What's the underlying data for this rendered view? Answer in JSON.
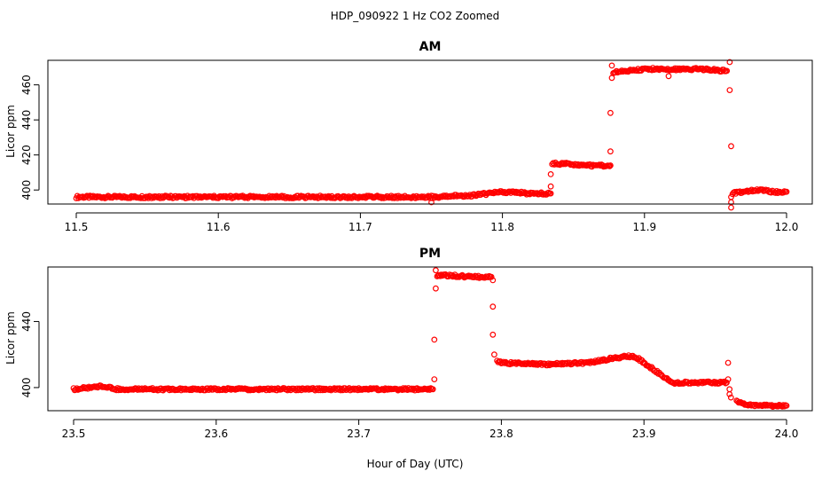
{
  "figure": {
    "title": "HDP_090922  1 Hz CO2 Zoomed",
    "xlabel": "Hour of Day (UTC)",
    "marker_color": "#ff0000"
  },
  "chart_data": [
    {
      "type": "scatter",
      "title": "AM",
      "xlabel": "",
      "ylabel": "Licor ppm",
      "xlim": [
        11.5,
        12.0
      ],
      "ylim": [
        392,
        474
      ],
      "xticks": [
        11.5,
        11.6,
        11.7,
        11.8,
        11.9,
        12.0
      ],
      "xtick_labels": [
        "11.5",
        "11.6",
        "11.7",
        "11.8",
        "11.9",
        "12.0"
      ],
      "yticks": [
        400,
        420,
        440,
        460
      ],
      "ytick_labels": [
        "400",
        "420",
        "440",
        "460"
      ],
      "grid": false,
      "marker": "open-circle",
      "color": "#ff0000",
      "segments": [
        {
          "x": [
            11.5,
            11.55,
            11.6,
            11.65,
            11.7,
            11.75,
            11.78,
            11.79,
            11.8,
            11.82,
            11.834
          ],
          "y": [
            396,
            396,
            396,
            396,
            396,
            396,
            397,
            398,
            399,
            398,
            398
          ]
        },
        {
          "x": [
            11.835,
            11.845,
            11.86,
            11.875,
            11.876
          ],
          "y": [
            415,
            415,
            414,
            414,
            414
          ]
        },
        {
          "x": [
            11.878,
            11.89,
            11.9,
            11.92,
            11.94,
            11.958
          ],
          "y": [
            467,
            468,
            469,
            469,
            469,
            468
          ]
        },
        {
          "x": [
            11.962,
            11.97,
            11.98,
            11.99,
            12.0
          ],
          "y": [
            398,
            399,
            400,
            399,
            399
          ]
        }
      ],
      "points": [
        {
          "x": 11.75,
          "y": 393
        },
        {
          "x": 11.834,
          "y": 402
        },
        {
          "x": 11.834,
          "y": 409
        },
        {
          "x": 11.876,
          "y": 422
        },
        {
          "x": 11.876,
          "y": 444
        },
        {
          "x": 11.877,
          "y": 464
        },
        {
          "x": 11.877,
          "y": 471
        },
        {
          "x": 11.917,
          "y": 465
        },
        {
          "x": 11.96,
          "y": 473
        },
        {
          "x": 11.96,
          "y": 457
        },
        {
          "x": 11.961,
          "y": 425
        },
        {
          "x": 11.961,
          "y": 396
        },
        {
          "x": 11.961,
          "y": 393
        },
        {
          "x": 11.961,
          "y": 390
        }
      ]
    },
    {
      "type": "scatter",
      "title": "PM",
      "xlabel": "",
      "ylabel": "Licor ppm",
      "xlim": [
        23.5,
        24.0
      ],
      "ylim": [
        386,
        473
      ],
      "xticks": [
        23.5,
        23.6,
        23.7,
        23.8,
        23.9,
        24.0
      ],
      "xtick_labels": [
        "23.5",
        "23.6",
        "23.7",
        "23.8",
        "23.9",
        "24.0"
      ],
      "yticks": [
        400,
        440
      ],
      "ytick_labels": [
        "400",
        "440"
      ],
      "grid": false,
      "marker": "open-circle",
      "color": "#ff0000",
      "segments": [
        {
          "x": [
            23.5,
            23.51,
            23.52,
            23.53,
            23.6,
            23.7,
            23.752
          ],
          "y": [
            399,
            400,
            401,
            399,
            399,
            399,
            399
          ]
        },
        {
          "x": [
            23.755,
            23.76,
            23.78,
            23.793
          ],
          "y": [
            468,
            468,
            467,
            467
          ]
        },
        {
          "x": [
            23.797,
            23.8,
            23.83,
            23.86,
            23.88,
            23.89,
            23.895,
            23.9,
            23.91,
            23.92,
            23.95,
            23.958
          ],
          "y": [
            416,
            415,
            414,
            415,
            418,
            419,
            418,
            415,
            409,
            403,
            403,
            403
          ]
        },
        {
          "x": [
            23.965,
            23.97,
            23.98,
            24.0
          ],
          "y": [
            392,
            390,
            389,
            389
          ]
        }
      ],
      "points": [
        {
          "x": 23.753,
          "y": 405
        },
        {
          "x": 23.753,
          "y": 429
        },
        {
          "x": 23.754,
          "y": 460
        },
        {
          "x": 23.754,
          "y": 471
        },
        {
          "x": 23.794,
          "y": 465
        },
        {
          "x": 23.794,
          "y": 449
        },
        {
          "x": 23.794,
          "y": 432
        },
        {
          "x": 23.795,
          "y": 420
        },
        {
          "x": 23.959,
          "y": 415
        },
        {
          "x": 23.959,
          "y": 405
        },
        {
          "x": 23.96,
          "y": 399
        },
        {
          "x": 23.96,
          "y": 396
        },
        {
          "x": 23.961,
          "y": 394
        }
      ]
    }
  ]
}
